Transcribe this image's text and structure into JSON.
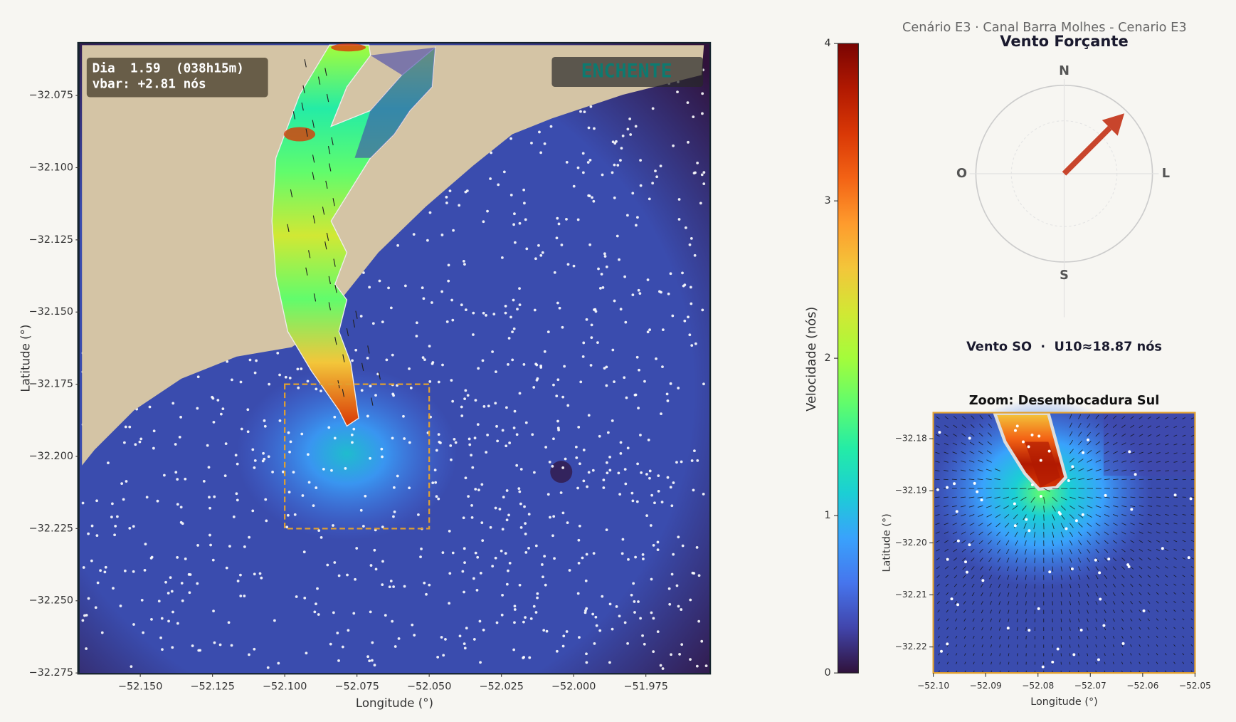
{
  "header": "Cenário E3  ·  Canal Barra Molhes - Cenario E3",
  "chart_data": [
    {
      "type": "map",
      "xlabel": "Longitude (°)",
      "ylabel": "Latitude (°)",
      "xlim": [
        -52.171,
        -51.953
      ],
      "ylim": [
        -32.275,
        -32.057
      ],
      "xticks": [
        {
          "value": -52.15,
          "label": "−52.150"
        },
        {
          "value": -52.125,
          "label": "−52.125"
        },
        {
          "value": -52.1,
          "label": "−52.100"
        },
        {
          "value": -52.075,
          "label": "−52.075"
        },
        {
          "value": -52.05,
          "label": "−52.050"
        },
        {
          "value": -52.025,
          "label": "−52.025"
        },
        {
          "value": -52.0,
          "label": "−52.000"
        },
        {
          "value": -51.975,
          "label": "−51.975"
        }
      ],
      "yticks": [
        {
          "value": -32.075,
          "label": "−32.075"
        },
        {
          "value": -32.1,
          "label": "−32.100"
        },
        {
          "value": -32.125,
          "label": "−32.125"
        },
        {
          "value": -32.15,
          "label": "−32.150"
        },
        {
          "value": -32.175,
          "label": "−32.175"
        },
        {
          "value": -32.2,
          "label": "−32.200"
        },
        {
          "value": -32.225,
          "label": "−32.225"
        },
        {
          "value": -32.25,
          "label": "−32.250"
        },
        {
          "value": -32.275,
          "label": "−32.275"
        }
      ],
      "info_lines": [
        "Dia  1.59  (038h15m)",
        "vbar: +2.81 nós"
      ],
      "phase": "ENCHENTE",
      "zoom_box": {
        "xlim": [
          -52.1,
          -52.05
        ],
        "ylim": [
          -32.225,
          -32.175
        ],
        "color": "#e0a030"
      },
      "land_color": "#d4c4a5",
      "water_color": "#3a4cae"
    },
    {
      "type": "colorbar",
      "label": "Velocidade (nós)",
      "ylim": [
        0,
        4
      ],
      "yticks": [
        0,
        1,
        2,
        3,
        4
      ],
      "colormap": [
        "#30123b",
        "#4145ab",
        "#4675ed",
        "#39a2fc",
        "#1bcfd4",
        "#24eca6",
        "#61fc6c",
        "#a4fc3b",
        "#d1e834",
        "#f3c63a",
        "#fe9b2d",
        "#f36315",
        "#d93806",
        "#b11901",
        "#7a0403"
      ]
    },
    {
      "type": "compass",
      "title": "Vento Forçante",
      "cardinals": [
        "N",
        "O",
        "L",
        "S"
      ],
      "heading_deg": 45,
      "color": "#c8452c",
      "caption": "Vento SO  ·  U10≈18.87 nós"
    },
    {
      "type": "map",
      "title": "Zoom: Desembocadura Sul",
      "xlabel": "Longitude (°)",
      "ylabel": "Latitude (°)",
      "xlim": [
        -52.1,
        -52.05
      ],
      "ylim": [
        -32.225,
        -32.175
      ],
      "xticks": [
        {
          "value": -52.1,
          "label": "−52.10"
        },
        {
          "value": -52.09,
          "label": "−52.09"
        },
        {
          "value": -52.08,
          "label": "−52.08"
        },
        {
          "value": -52.07,
          "label": "−52.07"
        },
        {
          "value": -52.06,
          "label": "−52.06"
        },
        {
          "value": -52.05,
          "label": "−52.05"
        }
      ],
      "yticks": [
        {
          "value": -32.18,
          "label": "−32.18"
        },
        {
          "value": -32.19,
          "label": "−32.19"
        },
        {
          "value": -32.2,
          "label": "−32.20"
        },
        {
          "value": -32.21,
          "label": "−32.21"
        },
        {
          "value": -32.22,
          "label": "−32.22"
        }
      ],
      "border_color": "#e0a030",
      "water_color": "#3a4cae"
    }
  ]
}
